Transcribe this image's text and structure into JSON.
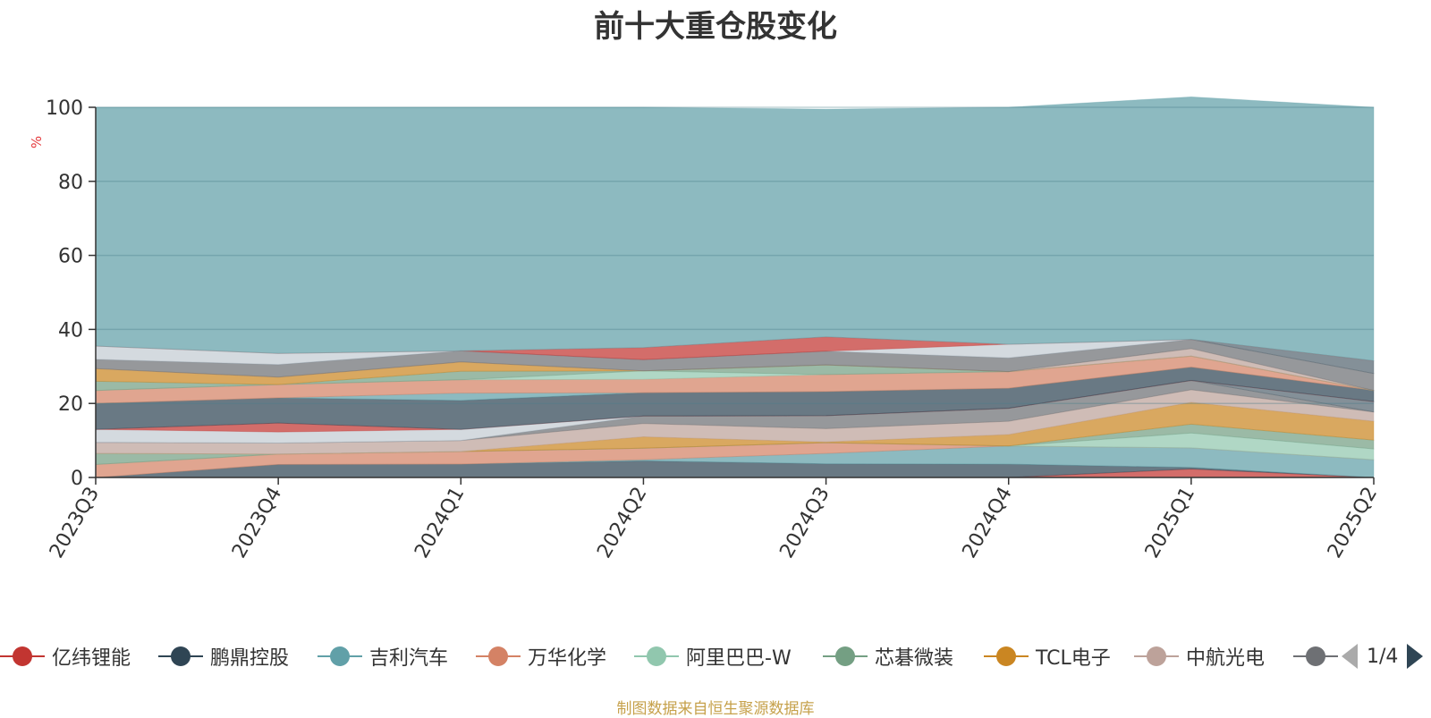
{
  "title": "前十大重仓股变化",
  "unit_label": "%",
  "source_note": "制图数据来自恒生聚源数据库",
  "legend_page": "1/4",
  "chart_data": {
    "type": "area",
    "stacked": true,
    "title": "前十大重仓股变化",
    "ylabel": "%",
    "ylim": [
      0,
      100
    ],
    "yticks": [
      0,
      20,
      40,
      60,
      80,
      100
    ],
    "grid": true,
    "legend_position": "bottom",
    "categories": [
      "2023Q3",
      "2023Q4",
      "2024Q1",
      "2024Q2",
      "2024Q3",
      "2024Q4",
      "2025Q1",
      "2025Q2"
    ],
    "series": [
      {
        "name": "亿纬锂能",
        "color": "#c23531",
        "values": [
          0,
          0,
          0,
          0,
          0,
          0,
          2.3,
          0
        ]
      },
      {
        "name": "鹏鼎控股",
        "color": "#2f4554",
        "values": [
          0,
          3.5,
          3.6,
          4.5,
          3.7,
          3.6,
          0.4,
          0
        ]
      },
      {
        "name": "吉利汽车",
        "color": "#61a0a8",
        "values": [
          0,
          0,
          0,
          0.3,
          2.8,
          4.9,
          5.3,
          4.8
        ]
      },
      {
        "name": "万华化学",
        "color": "#d48265",
        "values": [
          3.5,
          2.8,
          3.4,
          3.1,
          2.9,
          0,
          0,
          0
        ]
      },
      {
        "name": "阿里巴巴-W",
        "color": "#91c7ae",
        "values": [
          0,
          0,
          0,
          0,
          0,
          0,
          4.0,
          2.9
        ]
      },
      {
        "name": "芯碁微装",
        "color": "#749f83",
        "values": [
          3.0,
          0,
          0,
          0,
          0,
          0,
          2.4,
          2.4
        ]
      },
      {
        "name": "TCL电子",
        "color": "#ca8622",
        "values": [
          0,
          0,
          0,
          3.1,
          0.2,
          3.1,
          5.9,
          5.1
        ]
      },
      {
        "name": "中航光电",
        "color": "#bda29a",
        "values": [
          3.0,
          3.0,
          3.0,
          3.6,
          3.6,
          3.6,
          3.4,
          2.5
        ]
      },
      {
        "name": "",
        "color": "#6e7074",
        "values": [
          0,
          0,
          0,
          2.0,
          3.5,
          3.5,
          2.5,
          0
        ]
      },
      {
        "name": "",
        "color": "#546570",
        "values": [
          0,
          0,
          0,
          0,
          0,
          0,
          0,
          2.8
        ]
      },
      {
        "name": "",
        "color": "#c4ccd3",
        "values": [
          3.5,
          3.0,
          3.0,
          0,
          0,
          0,
          0,
          0
        ]
      },
      {
        "name": "",
        "color": "#c23531",
        "values": [
          0,
          2.4,
          0,
          0,
          0,
          0,
          0,
          0
        ]
      },
      {
        "name": "",
        "color": "#2f4554",
        "values": [
          7.0,
          6.8,
          7.8,
          6.3,
          6.5,
          5.4,
          3.6,
          3.0
        ]
      },
      {
        "name": "",
        "color": "#61a0a8",
        "values": [
          0,
          0,
          2.0,
          0,
          0,
          0,
          0,
          0
        ]
      },
      {
        "name": "",
        "color": "#d48265",
        "values": [
          3.5,
          3.6,
          3.6,
          3.6,
          4.6,
          4.5,
          3.0,
          0
        ]
      },
      {
        "name": "",
        "color": "#91c7ae",
        "values": [
          0,
          0,
          0,
          2.3,
          0,
          0,
          0,
          0
        ]
      },
      {
        "name": "",
        "color": "#749f83",
        "values": [
          2.5,
          0,
          2.3,
          0,
          2.6,
          0,
          0,
          0
        ]
      },
      {
        "name": "",
        "color": "#ca8622",
        "values": [
          3.4,
          2.0,
          2.5,
          0,
          0,
          0,
          0,
          0
        ]
      },
      {
        "name": "",
        "color": "#bda29a",
        "values": [
          0,
          0,
          0,
          0,
          0,
          0,
          2.0,
          0
        ]
      },
      {
        "name": "",
        "color": "#6e7074",
        "values": [
          2.5,
          3.4,
          3.0,
          3.0,
          3.7,
          3.7,
          2.5,
          4.6
        ]
      },
      {
        "name": "",
        "color": "#546570",
        "values": [
          0,
          0,
          0,
          0,
          0,
          0,
          0,
          3.4
        ]
      },
      {
        "name": "",
        "color": "#c4ccd3",
        "values": [
          3.6,
          3.0,
          0,
          0,
          0,
          3.7,
          0,
          0
        ]
      },
      {
        "name": "",
        "color": "#c23531",
        "values": [
          0,
          0,
          0,
          3.3,
          3.9,
          0,
          0,
          0
        ]
      },
      {
        "name": "",
        "color": "#61a0a8",
        "values": [
          64.5,
          66.5,
          65.8,
          64.9,
          61.5,
          64.0,
          65.5,
          68.5
        ]
      }
    ]
  },
  "legend": {
    "items": [
      {
        "label": "亿纬锂能",
        "color": "#c23531"
      },
      {
        "label": "鹏鼎控股",
        "color": "#2f4554"
      },
      {
        "label": "吉利汽车",
        "color": "#61a0a8"
      },
      {
        "label": "万华化学",
        "color": "#d48265"
      },
      {
        "label": "阿里巴巴-W",
        "color": "#91c7ae"
      },
      {
        "label": "芯碁微装",
        "color": "#749f83"
      },
      {
        "label": "TCL电子",
        "color": "#ca8622"
      },
      {
        "label": "中航光电",
        "color": "#bda29a"
      },
      {
        "label": "",
        "color": "#6e7074"
      }
    ]
  }
}
